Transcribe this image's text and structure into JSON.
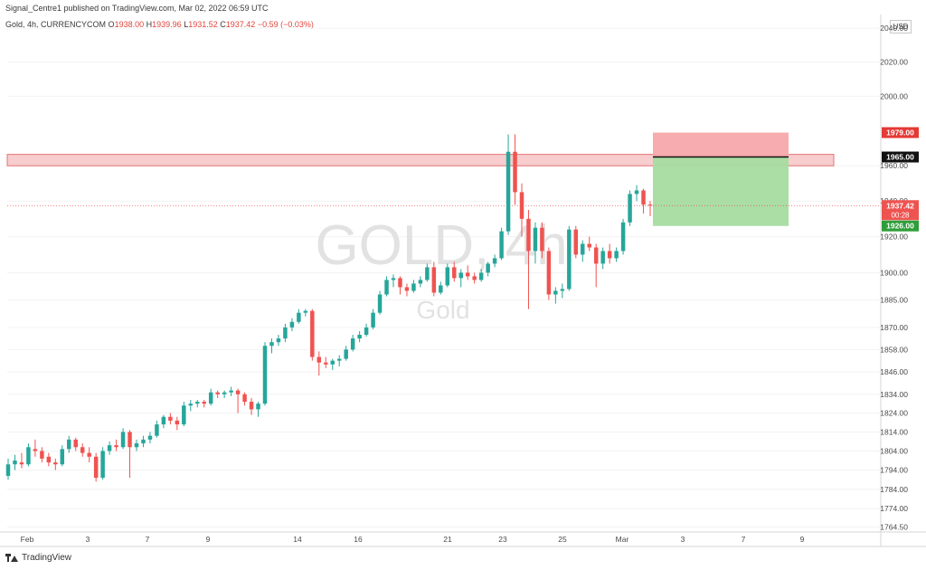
{
  "header": {
    "publisher_line": "Signal_Centre1 published on TradingView.com, Mar 02, 2022 06:59 UTC",
    "symbol_line": "Gold, 4h, CURRENCYCOM",
    "ohlc": {
      "o_label": "O",
      "o_value": "1938.00",
      "h_label": "H",
      "h_value": "1939.96",
      "l_label": "L",
      "l_value": "1931.52",
      "c_label": "C",
      "c_value": "1937.42",
      "change": "−0.59 (−0.03%)"
    },
    "currency_badge": "USD"
  },
  "watermark": {
    "main": "GOLD, 4h",
    "sub": "Gold"
  },
  "footer": {
    "brand": "TradingView"
  },
  "colors": {
    "up": "#26a69a",
    "down": "#ef5350",
    "zone_fill": "#f6c4c6",
    "zone_stroke": "#e57373",
    "stop_fill": "#f7a9ab",
    "target_fill": "#a5dca0",
    "entry_line": "#111111",
    "last_price_line": "#ef5350",
    "grid": "#f2f2f2",
    "axis_text": "#4a4a4a"
  },
  "chart_data": {
    "type": "candlestick",
    "timeframe": "4h",
    "y_axis": {
      "scale": "log",
      "ticks": [
        1764.5,
        1774.0,
        1784.0,
        1794.0,
        1804.0,
        1814.0,
        1824.0,
        1834.0,
        1846.0,
        1858.0,
        1870.0,
        1885.0,
        1900.0,
        1920.0,
        1940.0,
        1960.0,
        2000.0,
        2020.0,
        2040.0
      ],
      "tick_labels": [
        "1764.50",
        "1774.00",
        "1784.00",
        "1794.00",
        "1804.00",
        "1814.00",
        "1824.00",
        "1834.00",
        "1846.00",
        "1858.00",
        "1870.00",
        "1885.00",
        "1900.00",
        "1920.00",
        "1940.00",
        "1960.00",
        "2000.00",
        "2020.00",
        "2040.00"
      ],
      "range": [
        1762,
        2046
      ]
    },
    "x_axis": {
      "labels": [
        "Feb",
        "3",
        "7",
        "9",
        "14",
        "16",
        "21",
        "23",
        "25",
        "Mar",
        "3",
        "7",
        "9"
      ]
    },
    "candles": [
      [
        1791,
        1800,
        1789,
        1797
      ],
      [
        1797,
        1802,
        1794,
        1799
      ],
      [
        1798,
        1803,
        1795,
        1797
      ],
      [
        1797,
        1808,
        1796,
        1806
      ],
      [
        1805,
        1810,
        1801,
        1804
      ],
      [
        1804,
        1806,
        1798,
        1800
      ],
      [
        1801,
        1803,
        1796,
        1798
      ],
      [
        1798,
        1800,
        1794,
        1797
      ],
      [
        1797,
        1807,
        1796,
        1805
      ],
      [
        1805,
        1812,
        1803,
        1810
      ],
      [
        1810,
        1811,
        1804,
        1806
      ],
      [
        1806,
        1808,
        1801,
        1803
      ],
      [
        1803,
        1806,
        1798,
        1801
      ],
      [
        1801,
        1803,
        1788,
        1790
      ],
      [
        1790,
        1806,
        1789,
        1804
      ],
      [
        1804,
        1809,
        1802,
        1807
      ],
      [
        1807,
        1810,
        1804,
        1806
      ],
      [
        1806,
        1816,
        1805,
        1814
      ],
      [
        1814,
        1815,
        1790,
        1806
      ],
      [
        1806,
        1810,
        1804,
        1808
      ],
      [
        1808,
        1812,
        1806,
        1810
      ],
      [
        1810,
        1814,
        1808,
        1812
      ],
      [
        1812,
        1820,
        1811,
        1818
      ],
      [
        1818,
        1823,
        1816,
        1822
      ],
      [
        1822,
        1824,
        1818,
        1820
      ],
      [
        1820,
        1822,
        1815,
        1818
      ],
      [
        1818,
        1830,
        1817,
        1828
      ],
      [
        1828,
        1831,
        1825,
        1829
      ],
      [
        1829,
        1831,
        1827,
        1830
      ],
      [
        1830,
        1831,
        1827,
        1829
      ],
      [
        1829,
        1837,
        1828,
        1835
      ],
      [
        1835,
        1836,
        1832,
        1834
      ],
      [
        1834,
        1836,
        1832,
        1835
      ],
      [
        1835,
        1838,
        1833,
        1836
      ],
      [
        1836,
        1837,
        1824,
        1834
      ],
      [
        1834,
        1835,
        1828,
        1830
      ],
      [
        1830,
        1832,
        1823,
        1826
      ],
      [
        1826,
        1830,
        1822,
        1829
      ],
      [
        1829,
        1862,
        1828,
        1860
      ],
      [
        1860,
        1864,
        1856,
        1862
      ],
      [
        1862,
        1866,
        1860,
        1864
      ],
      [
        1864,
        1872,
        1862,
        1870
      ],
      [
        1870,
        1875,
        1868,
        1873
      ],
      [
        1873,
        1880,
        1872,
        1878
      ],
      [
        1878,
        1880,
        1876,
        1879
      ],
      [
        1879,
        1880,
        1852,
        1854
      ],
      [
        1854,
        1857,
        1844,
        1851
      ],
      [
        1851,
        1854,
        1848,
        1850
      ],
      [
        1850,
        1853,
        1847,
        1852
      ],
      [
        1852,
        1855,
        1849,
        1853
      ],
      [
        1853,
        1860,
        1852,
        1858
      ],
      [
        1858,
        1866,
        1857,
        1864
      ],
      [
        1864,
        1868,
        1862,
        1866
      ],
      [
        1866,
        1872,
        1865,
        1870
      ],
      [
        1870,
        1880,
        1869,
        1878
      ],
      [
        1878,
        1890,
        1877,
        1888
      ],
      [
        1888,
        1898,
        1887,
        1896
      ],
      [
        1896,
        1899,
        1892,
        1897
      ],
      [
        1897,
        1898,
        1888,
        1892
      ],
      [
        1892,
        1894,
        1887,
        1890
      ],
      [
        1890,
        1896,
        1889,
        1894
      ],
      [
        1894,
        1898,
        1892,
        1896
      ],
      [
        1896,
        1905,
        1895,
        1903
      ],
      [
        1903,
        1906,
        1887,
        1889
      ],
      [
        1889,
        1895,
        1888,
        1893
      ],
      [
        1893,
        1905,
        1892,
        1903
      ],
      [
        1903,
        1906,
        1895,
        1897
      ],
      [
        1897,
        1902,
        1892,
        1900
      ],
      [
        1900,
        1904,
        1896,
        1898
      ],
      [
        1898,
        1900,
        1894,
        1896
      ],
      [
        1896,
        1902,
        1895,
        1900
      ],
      [
        1900,
        1906,
        1898,
        1905
      ],
      [
        1905,
        1910,
        1903,
        1908
      ],
      [
        1908,
        1925,
        1907,
        1923
      ],
      [
        1923,
        1978,
        1921,
        1968
      ],
      [
        1968,
        1978,
        1938,
        1945
      ],
      [
        1945,
        1950,
        1920,
        1930
      ],
      [
        1930,
        1935,
        1880,
        1912
      ],
      [
        1912,
        1928,
        1905,
        1925
      ],
      [
        1925,
        1928,
        1908,
        1912
      ],
      [
        1912,
        1914,
        1885,
        1888
      ],
      [
        1888,
        1892,
        1883,
        1890
      ],
      [
        1890,
        1894,
        1886,
        1891
      ],
      [
        1891,
        1926,
        1890,
        1924
      ],
      [
        1924,
        1926,
        1908,
        1910
      ],
      [
        1910,
        1918,
        1906,
        1916
      ],
      [
        1916,
        1920,
        1912,
        1914
      ],
      [
        1914,
        1916,
        1892,
        1905
      ],
      [
        1905,
        1914,
        1902,
        1912
      ],
      [
        1912,
        1916,
        1905,
        1908
      ],
      [
        1908,
        1914,
        1906,
        1912
      ],
      [
        1912,
        1930,
        1910,
        1928
      ],
      [
        1928,
        1946,
        1926,
        1944
      ],
      [
        1944,
        1949,
        1940,
        1946
      ],
      [
        1946,
        1947,
        1933,
        1938
      ],
      [
        1938,
        1939.96,
        1931.52,
        1937.42
      ]
    ],
    "resistance_zone": {
      "low": 1960.0,
      "high": 1966.5
    },
    "position": {
      "type": "short",
      "entry": 1965.0,
      "stop": 1979.0,
      "target": 1926.0,
      "entry_label": "1965.00",
      "stop_label": "1979.00",
      "target_label": "1926.00"
    },
    "last_price": {
      "value": 1937.42,
      "label": "1937.42",
      "countdown": "00:28"
    }
  }
}
